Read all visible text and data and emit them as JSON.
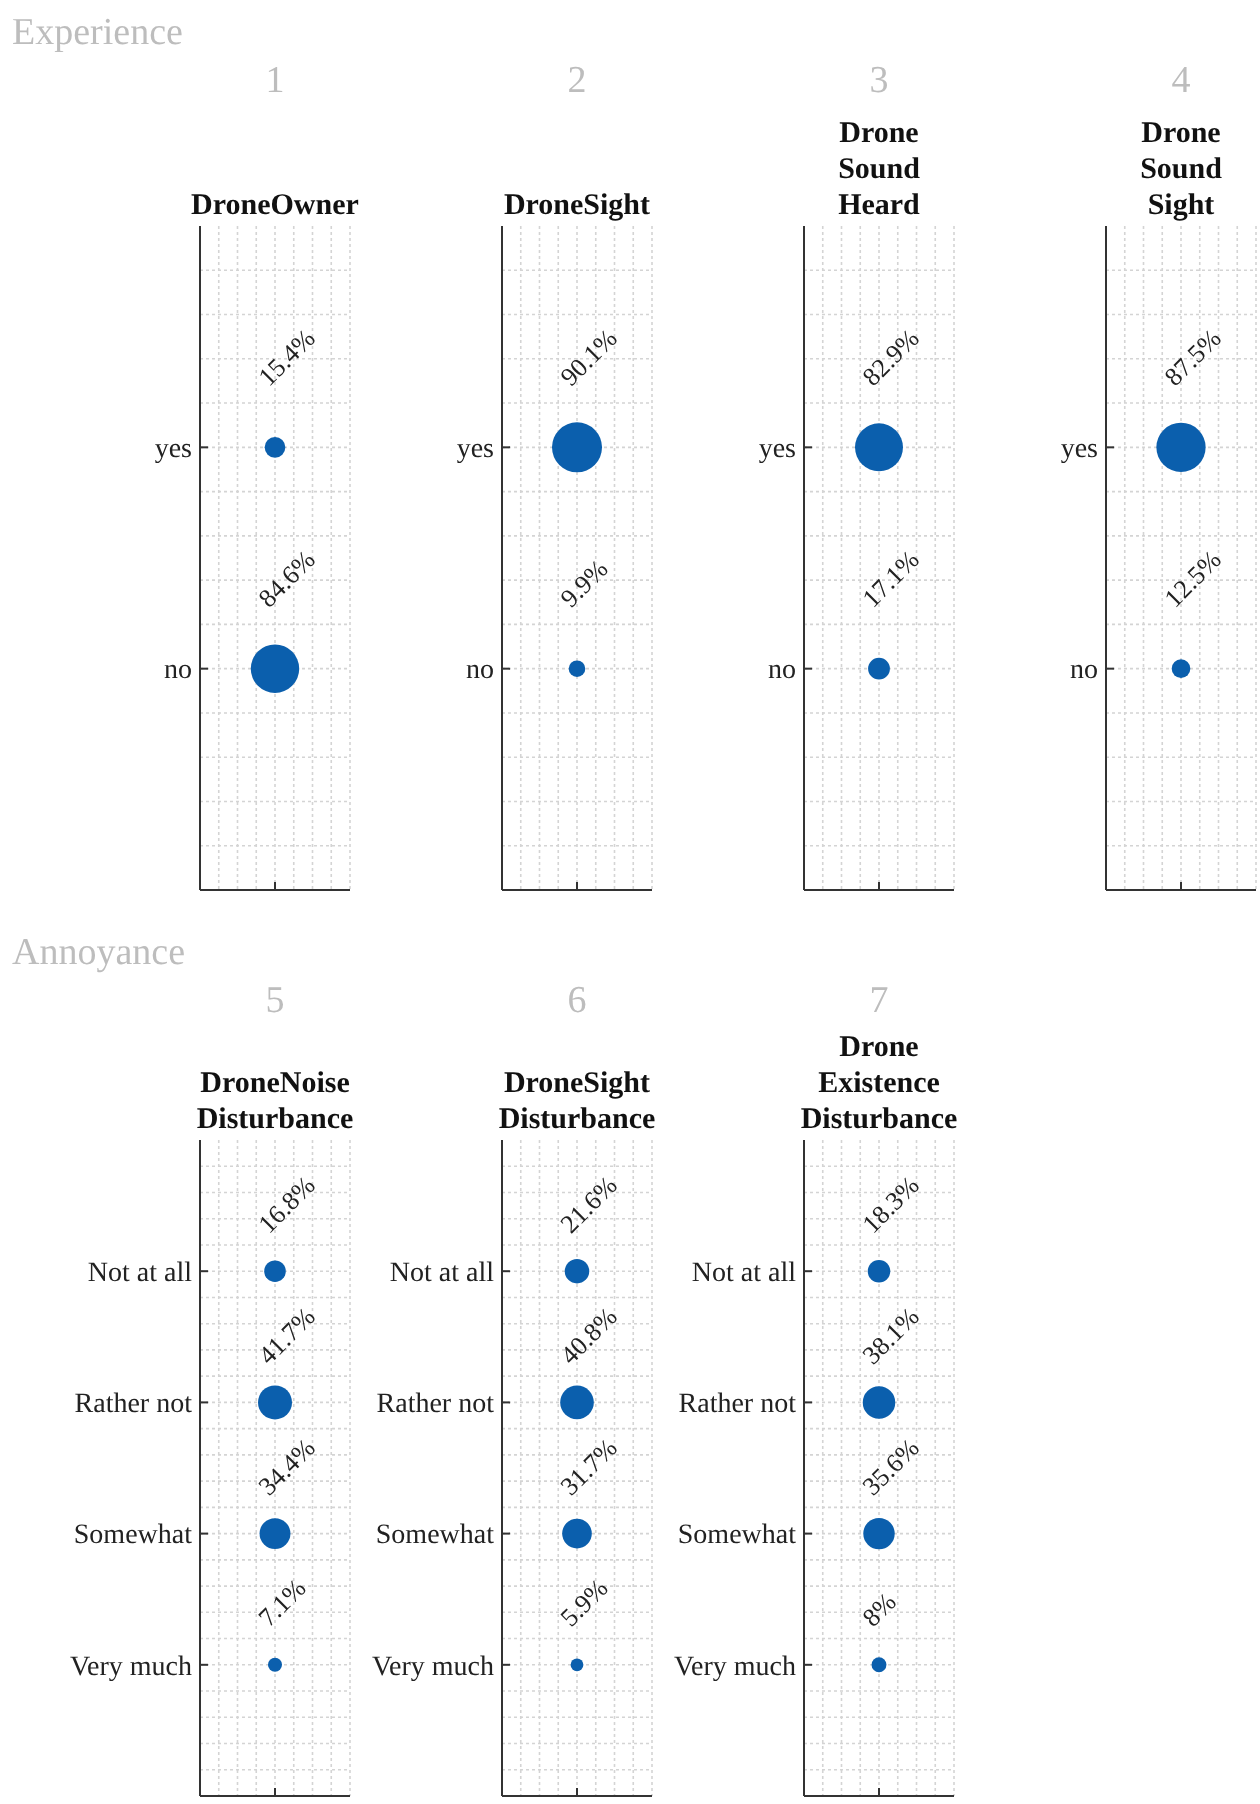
{
  "chart_data": [
    {
      "type": "other",
      "annotations": [
        "Experience"
      ],
      "subtitle": "1",
      "title": "DroneOwner",
      "categories": [
        "yes",
        "no"
      ],
      "values": [
        15.4,
        84.6
      ],
      "value_labels": [
        "15.4%",
        "84.6%"
      ],
      "color": "#0b5fad"
    },
    {
      "type": "other",
      "subtitle": "2",
      "title": "DroneSight",
      "categories": [
        "yes",
        "no"
      ],
      "values": [
        90.1,
        9.9
      ],
      "value_labels": [
        "90.1%",
        "9.9%"
      ],
      "color": "#0b5fad"
    },
    {
      "type": "other",
      "subtitle": "3",
      "title": "Drone\nSound\nHeard",
      "categories": [
        "yes",
        "no"
      ],
      "values": [
        82.9,
        17.1
      ],
      "value_labels": [
        "82.9%",
        "17.1%"
      ],
      "color": "#0b5fad"
    },
    {
      "type": "other",
      "subtitle": "4",
      "title": "Drone\nSound\nSight",
      "categories": [
        "yes",
        "no"
      ],
      "values": [
        87.5,
        12.5
      ],
      "value_labels": [
        "87.5%",
        "12.5%"
      ],
      "color": "#0b5fad"
    },
    {
      "type": "other",
      "annotations": [
        "Annoyance"
      ],
      "subtitle": "5",
      "title": "DroneNoise\nDisturbance",
      "categories": [
        "Not at all",
        "Rather not",
        "Somewhat",
        "Very much"
      ],
      "values": [
        16.8,
        41.7,
        34.4,
        7.1
      ],
      "value_labels": [
        "16.8%",
        "41.7%",
        "34.4%",
        "7.1%"
      ],
      "color": "#0b5fad"
    },
    {
      "type": "other",
      "subtitle": "6",
      "title": "DroneSight\nDisturbance",
      "categories": [
        "Not at all",
        "Rather not",
        "Somewhat",
        "Very much"
      ],
      "values": [
        21.6,
        40.8,
        31.7,
        5.9
      ],
      "value_labels": [
        "21.6%",
        "40.8%",
        "31.7%",
        "5.9%"
      ],
      "color": "#0b5fad"
    },
    {
      "type": "other",
      "subtitle": "7",
      "title": "Drone\nExistence\nDisturbance",
      "categories": [
        "Not at all",
        "Rather not",
        "Somewhat",
        "Very much"
      ],
      "values": [
        18.3,
        38.1,
        35.6,
        8
      ],
      "value_labels": [
        "18.3%",
        "38.1%",
        "35.6%",
        "8%"
      ],
      "color": "#0b5fad"
    }
  ]
}
